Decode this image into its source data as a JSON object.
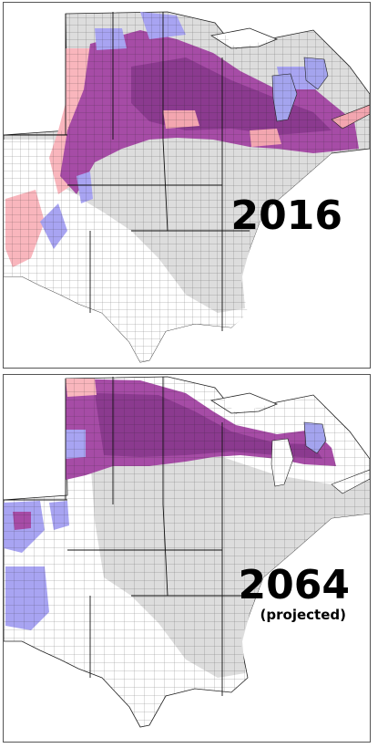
{
  "panels": [
    {
      "id": "top",
      "year": "2016",
      "note": ""
    },
    {
      "id": "bottom",
      "year": "2064",
      "note": "(projected)"
    }
  ],
  "colors": {
    "no_data": "#dddddd",
    "white": "#ffffff",
    "pink": "#f9b6bd",
    "purple": "#a64ca6",
    "dark_purple": "#8b3a8f",
    "lavender": "#a8a4f2",
    "lake": "#a4a4ee",
    "county_line": "#222222"
  }
}
